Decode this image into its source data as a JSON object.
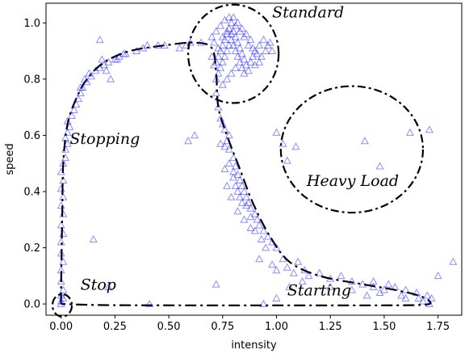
{
  "chart_data": {
    "type": "scatter",
    "title": "",
    "xlabel": "intensity",
    "ylabel": "speed",
    "xlim": [
      -0.07,
      1.86
    ],
    "ylim": [
      -0.04,
      1.07
    ],
    "xticks": [
      "0.00",
      "0.25",
      "0.50",
      "0.75",
      "1.00",
      "1.25",
      "1.50",
      "1.75"
    ],
    "xtick_values": [
      0,
      0.25,
      0.5,
      0.75,
      1.0,
      1.25,
      1.5,
      1.75
    ],
    "yticks": [
      "0.0",
      "0.2",
      "0.4",
      "0.6",
      "0.8",
      "1.0"
    ],
    "ytick_values": [
      0,
      0.2,
      0.4,
      0.6,
      0.8,
      1.0
    ],
    "grid": false,
    "marker": "open-triangle",
    "marker_color": "#0000ff",
    "curve_color": "#000000",
    "annotations": [
      {
        "text": "Standard",
        "x": 0.98,
        "y": 1.02
      },
      {
        "text": "Stopping",
        "x": 0.04,
        "y": 0.57
      },
      {
        "text": "Heavy Load",
        "x": 1.14,
        "y": 0.42
      },
      {
        "text": "Stop",
        "x": 0.09,
        "y": 0.05
      },
      {
        "text": "Starting",
        "x": 1.05,
        "y": 0.03
      }
    ],
    "regions": [
      {
        "name": "Standard",
        "cx": 0.8,
        "cy": 0.89,
        "rx": 0.21,
        "ry": 0.175
      },
      {
        "name": "Heavy Load",
        "cx": 1.35,
        "cy": 0.55,
        "rx": 0.33,
        "ry": 0.225
      },
      {
        "name": "Stop",
        "cx": 0.005,
        "cy": -0.005,
        "rx": 0.045,
        "ry": 0.04
      }
    ],
    "trajectory": [
      [
        0.0,
        0.0
      ],
      [
        0.0,
        0.06
      ],
      [
        0.005,
        0.3
      ],
      [
        0.01,
        0.5
      ],
      [
        0.03,
        0.64
      ],
      [
        0.07,
        0.73
      ],
      [
        0.12,
        0.8
      ],
      [
        0.2,
        0.86
      ],
      [
        0.32,
        0.9
      ],
      [
        0.48,
        0.92
      ],
      [
        0.62,
        0.93
      ],
      [
        0.7,
        0.91
      ],
      [
        0.72,
        0.82
      ],
      [
        0.73,
        0.7
      ],
      [
        0.77,
        0.6
      ],
      [
        0.83,
        0.48
      ],
      [
        0.89,
        0.36
      ],
      [
        0.97,
        0.24
      ],
      [
        1.06,
        0.15
      ],
      [
        1.2,
        0.1
      ],
      [
        1.4,
        0.07
      ],
      [
        1.55,
        0.05
      ],
      [
        1.66,
        0.03
      ],
      [
        1.71,
        0.01
      ],
      [
        1.68,
        -0.003
      ],
      [
        1.4,
        -0.005
      ],
      [
        1.0,
        -0.005
      ],
      [
        0.6,
        -0.005
      ],
      [
        0.2,
        -0.004
      ],
      [
        0.0,
        0.0
      ]
    ],
    "series": [
      {
        "points": [
          [
            0.0,
            0.0
          ],
          [
            0.0,
            0.01
          ],
          [
            0.01,
            0.02
          ],
          [
            0.0,
            0.03
          ],
          [
            0.01,
            0.05
          ],
          [
            0.0,
            0.08
          ],
          [
            0.0,
            0.12
          ],
          [
            0.01,
            0.15
          ],
          [
            0.0,
            0.18
          ],
          [
            0.0,
            0.22
          ],
          [
            0.01,
            0.25
          ],
          [
            0.0,
            0.28
          ],
          [
            0.01,
            0.32
          ],
          [
            0.0,
            0.35
          ],
          [
            0.01,
            0.38
          ],
          [
            0.0,
            0.41
          ],
          [
            0.01,
            0.44
          ],
          [
            0.0,
            0.47
          ],
          [
            0.01,
            0.5
          ],
          [
            0.02,
            0.52
          ],
          [
            0.02,
            0.55
          ],
          [
            0.03,
            0.57
          ],
          [
            0.02,
            0.59
          ],
          [
            0.03,
            0.61
          ],
          [
            0.04,
            0.63
          ],
          [
            0.03,
            0.65
          ],
          [
            0.05,
            0.67
          ],
          [
            0.06,
            0.69
          ],
          [
            0.07,
            0.71
          ],
          [
            0.08,
            0.73
          ],
          [
            0.09,
            0.75
          ],
          [
            0.1,
            0.77
          ],
          [
            0.12,
            0.79
          ],
          [
            0.14,
            0.81
          ],
          [
            0.16,
            0.83
          ],
          [
            0.18,
            0.84
          ],
          [
            0.2,
            0.85
          ],
          [
            0.22,
            0.86
          ],
          [
            0.25,
            0.87
          ],
          [
            0.27,
            0.88
          ],
          [
            0.3,
            0.89
          ],
          [
            0.35,
            0.9
          ],
          [
            0.38,
            0.91
          ],
          [
            0.4,
            0.92
          ],
          [
            0.45,
            0.92
          ],
          [
            0.48,
            0.92
          ],
          [
            0.55,
            0.91
          ],
          [
            0.58,
            0.92
          ],
          [
            0.6,
            0.93
          ],
          [
            0.65,
            0.93
          ],
          [
            0.09,
            0.77
          ],
          [
            0.11,
            0.8
          ],
          [
            0.13,
            0.82
          ],
          [
            0.19,
            0.87
          ],
          [
            0.21,
            0.83
          ],
          [
            0.26,
            0.87
          ],
          [
            0.29,
            0.89
          ],
          [
            0.18,
            0.94
          ],
          [
            0.23,
            0.8
          ],
          [
            0.15,
            0.23
          ],
          [
            0.22,
            0.06
          ],
          [
            0.41,
            0.0
          ],
          [
            0.72,
            0.86
          ],
          [
            0.73,
            0.88
          ],
          [
            0.74,
            0.9
          ],
          [
            0.75,
            0.92
          ],
          [
            0.76,
            0.94
          ],
          [
            0.77,
            0.96
          ],
          [
            0.78,
            0.98
          ],
          [
            0.79,
            1.0
          ],
          [
            0.8,
            0.97
          ],
          [
            0.81,
            0.95
          ],
          [
            0.82,
            0.93
          ],
          [
            0.83,
            0.91
          ],
          [
            0.84,
            0.89
          ],
          [
            0.85,
            0.87
          ],
          [
            0.86,
            0.85
          ],
          [
            0.87,
            0.83
          ],
          [
            0.88,
            0.86
          ],
          [
            0.89,
            0.88
          ],
          [
            0.9,
            0.9
          ],
          [
            0.92,
            0.92
          ],
          [
            0.94,
            0.94
          ],
          [
            0.96,
            0.92
          ],
          [
            0.98,
            0.9
          ],
          [
            0.72,
            0.8
          ],
          [
            0.73,
            0.82
          ],
          [
            0.74,
            0.84
          ],
          [
            0.75,
            0.86
          ],
          [
            0.76,
            0.88
          ],
          [
            0.77,
            0.9
          ],
          [
            0.78,
            0.92
          ],
          [
            0.79,
            0.94
          ],
          [
            0.8,
            0.92
          ],
          [
            0.81,
            0.9
          ],
          [
            0.82,
            0.88
          ],
          [
            0.83,
            0.86
          ],
          [
            0.84,
            0.84
          ],
          [
            0.85,
            0.82
          ],
          [
            0.7,
            0.95
          ],
          [
            0.71,
            0.93
          ],
          [
            0.72,
            0.97
          ],
          [
            0.74,
            0.99
          ],
          [
            0.76,
            1.01
          ],
          [
            0.78,
            1.02
          ],
          [
            0.8,
            1.02
          ],
          [
            0.82,
            1.0
          ],
          [
            0.84,
            0.98
          ],
          [
            0.86,
            0.96
          ],
          [
            0.88,
            0.94
          ],
          [
            0.9,
            0.85
          ],
          [
            0.92,
            0.86
          ],
          [
            0.75,
            0.78
          ],
          [
            0.77,
            0.8
          ],
          [
            0.79,
            0.82
          ],
          [
            0.81,
            0.84
          ],
          [
            0.7,
            0.88
          ],
          [
            0.71,
            0.85
          ],
          [
            0.73,
            0.91
          ],
          [
            0.75,
            0.95
          ],
          [
            0.77,
            0.97
          ],
          [
            0.79,
            0.96
          ],
          [
            0.81,
            0.99
          ],
          [
            0.83,
            0.97
          ],
          [
            0.85,
            0.95
          ],
          [
            0.87,
            0.92
          ],
          [
            0.89,
            0.91
          ],
          [
            0.91,
            0.89
          ],
          [
            0.93,
            0.88
          ],
          [
            0.95,
            0.9
          ],
          [
            0.97,
            0.93
          ],
          [
            0.72,
            0.75
          ],
          [
            0.73,
            0.7
          ],
          [
            0.74,
            0.66
          ],
          [
            0.76,
            0.62
          ],
          [
            0.77,
            0.58
          ],
          [
            0.78,
            0.55
          ],
          [
            0.8,
            0.52
          ],
          [
            0.81,
            0.49
          ],
          [
            0.82,
            0.46
          ],
          [
            0.83,
            0.44
          ],
          [
            0.84,
            0.42
          ],
          [
            0.85,
            0.4
          ],
          [
            0.86,
            0.38
          ],
          [
            0.87,
            0.36
          ],
          [
            0.88,
            0.34
          ],
          [
            0.9,
            0.32
          ],
          [
            0.91,
            0.3
          ],
          [
            0.92,
            0.28
          ],
          [
            0.94,
            0.26
          ],
          [
            0.96,
            0.24
          ],
          [
            0.98,
            0.22
          ],
          [
            1.0,
            0.2
          ],
          [
            0.78,
            0.6
          ],
          [
            0.8,
            0.45
          ],
          [
            0.82,
            0.4
          ],
          [
            0.84,
            0.36
          ],
          [
            0.79,
            0.38
          ],
          [
            0.82,
            0.33
          ],
          [
            0.85,
            0.3
          ],
          [
            0.88,
            0.27
          ],
          [
            0.81,
            0.42
          ],
          [
            0.83,
            0.38
          ],
          [
            0.86,
            0.35
          ],
          [
            0.88,
            0.31
          ],
          [
            0.9,
            0.26
          ],
          [
            0.93,
            0.23
          ],
          [
            0.95,
            0.2
          ],
          [
            0.92,
            0.16
          ],
          [
            0.98,
            0.14
          ],
          [
            1.0,
            0.12
          ],
          [
            1.03,
            0.16
          ],
          [
            1.05,
            0.13
          ],
          [
            1.08,
            0.11
          ],
          [
            1.1,
            0.15
          ],
          [
            1.13,
            0.12
          ],
          [
            1.15,
            0.1
          ],
          [
            1.2,
            0.11
          ],
          [
            1.25,
            0.09
          ],
          [
            1.3,
            0.1
          ],
          [
            1.35,
            0.08
          ],
          [
            1.4,
            0.07
          ],
          [
            1.45,
            0.06
          ],
          [
            1.5,
            0.05
          ],
          [
            1.55,
            0.06
          ],
          [
            1.6,
            0.05
          ],
          [
            1.65,
            0.04
          ],
          [
            1.7,
            0.03
          ],
          [
            1.72,
            0.02
          ],
          [
            1.66,
            0.02
          ],
          [
            1.58,
            0.03
          ],
          [
            1.45,
            0.08
          ],
          [
            1.35,
            0.05
          ],
          [
            1.25,
            0.06
          ],
          [
            1.12,
            0.08
          ],
          [
            1.82,
            0.15
          ],
          [
            1.75,
            0.1
          ],
          [
            1.48,
            0.04
          ],
          [
            1.68,
            0.01
          ],
          [
            1.71,
            0.0
          ],
          [
            1.6,
            0.02
          ],
          [
            1.52,
            0.07
          ],
          [
            1.42,
            0.03
          ],
          [
            0.75,
            0.64
          ],
          [
            0.76,
            0.56
          ],
          [
            0.78,
            0.5
          ],
          [
            0.8,
            0.47
          ],
          [
            0.77,
            0.42
          ],
          [
            0.76,
            0.48
          ],
          [
            0.74,
            0.57
          ],
          [
            0.72,
            0.07
          ],
          [
            0.94,
            0.0
          ],
          [
            1.0,
            0.02
          ],
          [
            1.06,
            0.06
          ],
          [
            1.0,
            0.61
          ],
          [
            1.03,
            0.57
          ],
          [
            1.09,
            0.56
          ],
          [
            1.05,
            0.51
          ],
          [
            1.41,
            0.58
          ],
          [
            1.62,
            0.61
          ],
          [
            1.48,
            0.49
          ],
          [
            1.71,
            0.62
          ],
          [
            0.59,
            0.58
          ],
          [
            0.62,
            0.6
          ]
        ]
      }
    ]
  }
}
